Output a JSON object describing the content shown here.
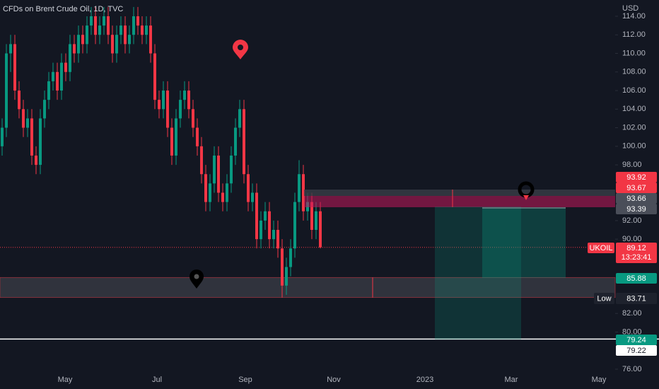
{
  "chart_data": {
    "type": "candlestick",
    "title": "CFDs on Brent Crude Oil, 1D, TVC",
    "currency": "USD",
    "up_color": "#089981",
    "down_color": "#f23645",
    "ylim": [
      75.77,
      115.75
    ],
    "yticks": [
      {
        "value": 76,
        "label": "76.00"
      },
      {
        "value": 80,
        "label": "80.00"
      },
      {
        "value": 82,
        "label": "82.00"
      },
      {
        "value": 90,
        "label": "90.00"
      },
      {
        "value": 92,
        "label": "92.00"
      },
      {
        "value": 98,
        "label": "98.00"
      },
      {
        "value": 100,
        "label": "100.00"
      },
      {
        "value": 102,
        "label": "102.00"
      },
      {
        "value": 104,
        "label": "104.00"
      },
      {
        "value": 106,
        "label": "106.00"
      },
      {
        "value": 108,
        "label": "108.00"
      },
      {
        "value": 110,
        "label": "110.00"
      },
      {
        "value": 112,
        "label": "112.00"
      },
      {
        "value": 114,
        "label": "114.00"
      }
    ],
    "months": [
      "May",
      "Jul",
      "Sep",
      "Nov",
      "2023",
      "Mar",
      "May"
    ],
    "candles": [
      [
        100,
        103,
        99,
        102
      ],
      [
        102,
        111,
        101,
        110
      ],
      [
        110,
        112,
        108,
        111
      ],
      [
        111,
        112,
        105,
        106
      ],
      [
        106,
        107,
        103,
        104
      ],
      [
        104,
        105,
        101,
        102
      ],
      [
        102,
        104,
        101,
        103
      ],
      [
        103,
        104,
        98,
        99
      ],
      [
        99,
        100,
        97,
        98
      ],
      [
        98,
        104,
        97,
        103
      ],
      [
        103,
        106,
        102,
        105
      ],
      [
        105,
        108,
        104,
        107
      ],
      [
        107,
        109,
        106,
        108
      ],
      [
        108,
        109,
        105,
        106
      ],
      [
        106,
        110,
        105,
        109
      ],
      [
        109,
        110,
        107,
        108
      ],
      [
        108,
        112,
        107,
        111
      ],
      [
        111,
        112,
        109,
        110
      ],
      [
        110,
        113,
        109,
        112
      ],
      [
        112,
        113,
        110,
        111
      ],
      [
        111,
        114,
        110,
        113
      ],
      [
        113,
        115,
        112,
        114
      ],
      [
        114,
        115,
        111,
        112
      ],
      [
        112,
        114,
        111,
        113
      ],
      [
        113,
        115,
        112,
        114
      ],
      [
        114,
        115,
        111,
        112
      ],
      [
        112,
        113,
        109,
        110
      ],
      [
        110,
        113,
        109,
        112
      ],
      [
        112,
        114,
        111,
        113
      ],
      [
        113,
        114,
        110,
        111
      ],
      [
        111,
        113,
        110,
        112
      ],
      [
        112,
        115,
        111,
        114
      ],
      [
        114,
        115,
        112,
        113
      ],
      [
        113,
        114,
        111,
        112
      ],
      [
        112,
        114,
        111,
        113
      ],
      [
        113,
        114,
        109,
        110
      ],
      [
        110,
        111,
        104,
        105
      ],
      [
        105,
        106,
        103,
        104
      ],
      [
        104,
        107,
        103,
        106
      ],
      [
        106,
        107,
        101,
        102
      ],
      [
        102,
        103,
        98,
        99
      ],
      [
        99,
        104,
        98,
        103
      ],
      [
        103,
        106,
        102,
        105
      ],
      [
        105,
        107,
        104,
        106
      ],
      [
        106,
        107,
        103,
        104
      ],
      [
        104,
        105,
        101,
        102
      ],
      [
        102,
        103,
        99,
        100
      ],
      [
        100,
        101,
        96,
        97
      ],
      [
        97,
        98,
        93,
        94
      ],
      [
        94,
        97,
        93,
        96
      ],
      [
        96,
        100,
        95,
        99
      ],
      [
        99,
        100,
        94,
        95
      ],
      [
        95,
        96,
        93,
        94
      ],
      [
        94,
        97,
        93,
        96
      ],
      [
        96,
        100,
        95,
        99
      ],
      [
        99,
        103,
        98,
        102
      ],
      [
        102,
        105,
        101,
        104
      ],
      [
        104,
        105,
        96,
        97
      ],
      [
        97,
        98,
        93,
        94
      ],
      [
        94,
        96,
        93,
        95
      ],
      [
        95,
        96,
        89,
        90
      ],
      [
        90,
        93,
        89,
        92
      ],
      [
        92,
        94,
        91,
        93
      ],
      [
        93,
        94,
        89,
        90
      ],
      [
        90,
        92,
        89,
        91
      ],
      [
        91,
        92,
        88,
        89
      ],
      [
        89,
        90,
        83.71,
        85
      ],
      [
        85,
        88,
        84,
        87
      ],
      [
        87,
        90,
        86,
        89
      ],
      [
        89,
        95,
        88,
        94
      ],
      [
        94,
        98.5,
        93,
        97
      ],
      [
        97,
        98,
        92,
        93
      ],
      [
        93,
        95,
        92,
        94
      ],
      [
        94,
        95,
        90,
        91
      ],
      [
        91,
        94,
        90,
        93
      ],
      [
        93,
        94,
        89,
        89.12
      ]
    ],
    "price_badges": [
      93.92,
      93.67,
      93.66,
      93.39
    ],
    "last": {
      "symbol": "UKOIL",
      "price": 89.12,
      "countdown": "13:23:41"
    },
    "target": 85.88,
    "low": {
      "label": "Low",
      "value": 83.71
    },
    "stop": 79.24,
    "stop_alt": 79.22
  }
}
